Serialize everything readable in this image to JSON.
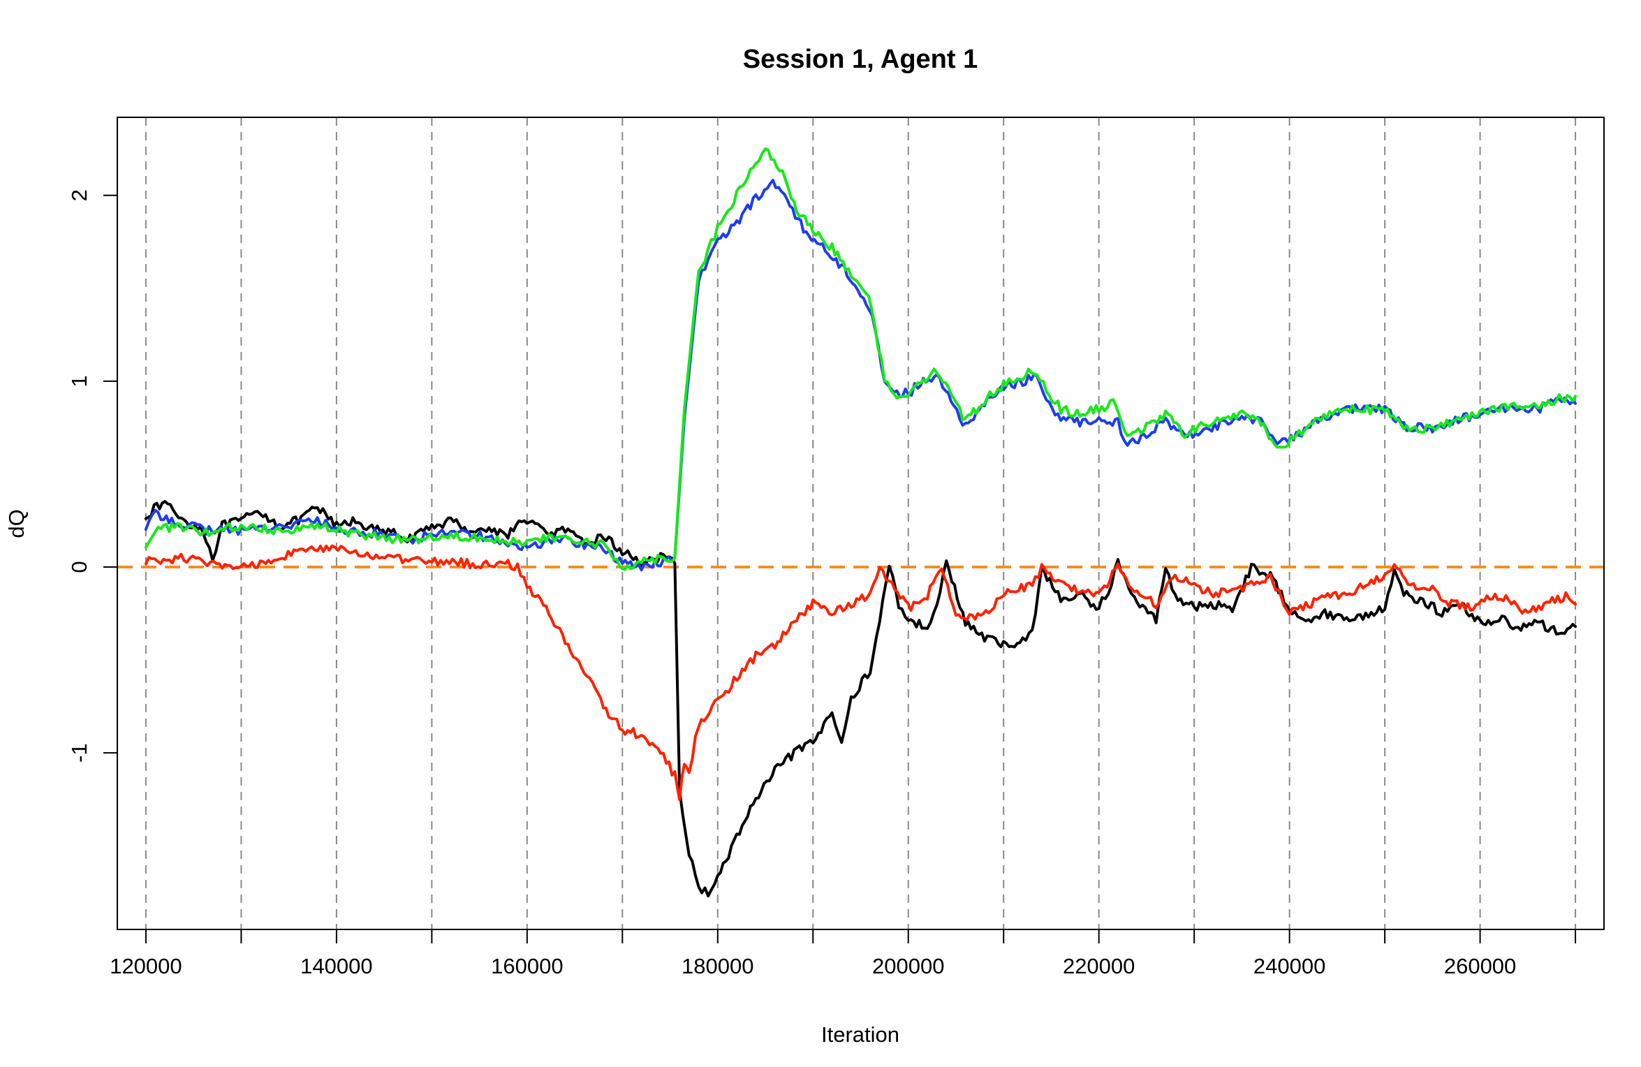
{
  "chart_data": {
    "type": "line",
    "title": "Session 1, Agent 1",
    "xlabel": "Iteration",
    "ylabel": "dQ",
    "xlim": [
      117000,
      273000
    ],
    "ylim": [
      -1.95,
      2.42
    ],
    "x_ticks": [
      120000,
      140000,
      160000,
      180000,
      200000,
      220000,
      240000,
      260000
    ],
    "x_tick_labels": [
      "120000",
      "140000",
      "160000",
      "180000",
      "200000",
      "220000",
      "240000",
      "260000"
    ],
    "y_ticks": [
      -1,
      0,
      1,
      2
    ],
    "y_tick_labels": [
      "-1",
      "0",
      "1",
      "2"
    ],
    "vertical_gridlines": [
      120000,
      130000,
      140000,
      150000,
      160000,
      170000,
      180000,
      190000,
      200000,
      210000,
      220000,
      230000,
      240000,
      250000,
      260000,
      270000
    ],
    "grid": "vertical dashed",
    "reference_line": {
      "y": 0,
      "color": "#ff8c1a",
      "style": "dashed"
    },
    "series": [
      {
        "color": "#000000",
        "x": [
          120000,
          122000,
          124000,
          126000,
          127000,
          128000,
          130000,
          132000,
          134000,
          136000,
          138000,
          140000,
          142000,
          144000,
          146000,
          148000,
          150000,
          152000,
          154000,
          156000,
          158000,
          160000,
          162000,
          164000,
          166000,
          168000,
          170000,
          172000,
          174000,
          175500,
          176000,
          177000,
          178000,
          179000,
          180000,
          182000,
          184000,
          186000,
          188000,
          190000,
          192000,
          193000,
          194000,
          196000,
          197000,
          198000,
          199000,
          200000,
          202000,
          203000,
          204000,
          206000,
          208000,
          210000,
          212000,
          213000,
          214000,
          216000,
          218000,
          220000,
          221000,
          222000,
          224000,
          226000,
          227000,
          228000,
          230000,
          232000,
          234000,
          236000,
          238000,
          240000,
          242000,
          244000,
          246000,
          248000,
          250000,
          251000,
          252000,
          254000,
          256000,
          258000,
          260000,
          262000,
          264000,
          266000,
          268000,
          270000
        ],
        "y": [
          0.28,
          0.35,
          0.25,
          0.2,
          0.05,
          0.22,
          0.25,
          0.3,
          0.22,
          0.25,
          0.32,
          0.22,
          0.25,
          0.2,
          0.18,
          0.15,
          0.22,
          0.25,
          0.2,
          0.2,
          0.18,
          0.26,
          0.18,
          0.2,
          0.12,
          0.17,
          0.08,
          0.03,
          0.05,
          0.02,
          -1.2,
          -1.55,
          -1.72,
          -1.75,
          -1.68,
          -1.45,
          -1.25,
          -1.1,
          -1.0,
          -0.95,
          -0.78,
          -0.92,
          -0.72,
          -0.55,
          -0.3,
          0.02,
          -0.2,
          -0.28,
          -0.33,
          -0.18,
          0.02,
          -0.3,
          -0.38,
          -0.42,
          -0.4,
          -0.35,
          0.0,
          -0.18,
          -0.15,
          -0.22,
          -0.12,
          0.02,
          -0.2,
          -0.28,
          0.0,
          -0.15,
          -0.22,
          -0.2,
          -0.22,
          0.0,
          -0.05,
          -0.22,
          -0.28,
          -0.25,
          -0.28,
          -0.26,
          -0.22,
          0.0,
          -0.15,
          -0.18,
          -0.25,
          -0.2,
          -0.3,
          -0.28,
          -0.32,
          -0.3,
          -0.35,
          -0.32
        ]
      },
      {
        "color": "#1f3cf0",
        "x": [
          120000,
          121000,
          123000,
          126000,
          130000,
          134000,
          138000,
          140000,
          144000,
          148000,
          152000,
          156000,
          158000,
          160000,
          162000,
          164000,
          166000,
          168000,
          170000,
          172000,
          174000,
          175500,
          176500,
          178000,
          179000,
          180000,
          182000,
          184000,
          185500,
          187000,
          189000,
          191000,
          193000,
          195000,
          196500,
          197500,
          198500,
          200000,
          201000,
          203000,
          204500,
          206000,
          208000,
          210000,
          212000,
          213500,
          214500,
          216000,
          218000,
          220000,
          222000,
          223000,
          225000,
          227000,
          229000,
          231000,
          233000,
          235000,
          237000,
          239000,
          241000,
          243000,
          246000,
          250000,
          252000,
          255000,
          258000,
          260000,
          262000,
          266000,
          268000,
          270000
        ],
        "y": [
          0.22,
          0.28,
          0.25,
          0.2,
          0.2,
          0.22,
          0.25,
          0.2,
          0.18,
          0.15,
          0.2,
          0.16,
          0.12,
          0.1,
          0.14,
          0.15,
          0.12,
          0.1,
          0.02,
          0.0,
          0.03,
          0.05,
          0.8,
          1.55,
          1.65,
          1.75,
          1.85,
          1.98,
          2.08,
          2.0,
          1.82,
          1.72,
          1.62,
          1.48,
          1.3,
          1.0,
          0.95,
          0.93,
          0.98,
          1.02,
          0.9,
          0.75,
          0.88,
          0.97,
          1.0,
          1.02,
          0.9,
          0.8,
          0.78,
          0.8,
          0.78,
          0.65,
          0.72,
          0.78,
          0.7,
          0.72,
          0.78,
          0.82,
          0.78,
          0.66,
          0.72,
          0.78,
          0.85,
          0.85,
          0.76,
          0.74,
          0.8,
          0.82,
          0.85,
          0.85,
          0.9,
          0.88
        ]
      },
      {
        "color": "#18e818",
        "x": [
          120000,
          121000,
          123000,
          126000,
          130000,
          134000,
          138000,
          140000,
          144000,
          148000,
          152000,
          156000,
          158000,
          160000,
          162000,
          164000,
          166000,
          168000,
          170000,
          172000,
          174000,
          175500,
          176500,
          178000,
          179000,
          180000,
          182000,
          184000,
          185000,
          186500,
          188000,
          190000,
          192000,
          194000,
          195500,
          196500,
          197500,
          198500,
          200000,
          201000,
          203000,
          204500,
          206000,
          208000,
          210000,
          212000,
          213500,
          214500,
          216000,
          218000,
          220000,
          221500,
          223000,
          225000,
          227000,
          229000,
          231000,
          233000,
          235000,
          237000,
          239000,
          241000,
          243000,
          246000,
          250000,
          252000,
          255000,
          258000,
          260000,
          262000,
          266000,
          268000,
          270000
        ],
        "y": [
          0.12,
          0.2,
          0.22,
          0.18,
          0.22,
          0.2,
          0.22,
          0.2,
          0.16,
          0.15,
          0.17,
          0.16,
          0.14,
          0.13,
          0.15,
          0.16,
          0.13,
          0.12,
          0.0,
          0.03,
          0.05,
          0.05,
          0.85,
          1.6,
          1.7,
          1.82,
          2.0,
          2.18,
          2.24,
          2.15,
          1.95,
          1.8,
          1.72,
          1.58,
          1.5,
          1.3,
          1.0,
          0.93,
          0.93,
          1.0,
          1.05,
          0.95,
          0.78,
          0.9,
          0.98,
          1.03,
          1.06,
          0.95,
          0.85,
          0.82,
          0.85,
          0.88,
          0.72,
          0.75,
          0.82,
          0.72,
          0.76,
          0.8,
          0.82,
          0.78,
          0.63,
          0.72,
          0.8,
          0.86,
          0.84,
          0.76,
          0.74,
          0.8,
          0.84,
          0.86,
          0.86,
          0.9,
          0.92
        ]
      },
      {
        "color": "#ff2200",
        "x": [
          120000,
          124000,
          128000,
          130000,
          132000,
          134000,
          138000,
          142000,
          146000,
          150000,
          154000,
          156000,
          158000,
          159000,
          160000,
          162000,
          164000,
          166000,
          168000,
          170000,
          172000,
          174000,
          175500,
          176000,
          176500,
          177000,
          178000,
          180000,
          182000,
          184000,
          186000,
          188000,
          190000,
          192000,
          194000,
          196000,
          197000,
          198000,
          200000,
          202000,
          203500,
          205000,
          207000,
          209000,
          211000,
          213000,
          214000,
          216000,
          218000,
          220000,
          222000,
          224000,
          226000,
          228000,
          230000,
          232000,
          234000,
          236000,
          238000,
          240000,
          242000,
          244000,
          246000,
          248000,
          250000,
          251000,
          253000,
          255000,
          257000,
          259000,
          261000,
          263000,
          265000,
          267000,
          269000,
          270000
        ],
        "y": [
          0.03,
          0.05,
          0.0,
          0.0,
          0.02,
          0.06,
          0.1,
          0.08,
          0.04,
          0.03,
          0.02,
          0.01,
          0.02,
          0.0,
          -0.1,
          -0.22,
          -0.4,
          -0.55,
          -0.75,
          -0.88,
          -0.9,
          -1.0,
          -1.12,
          -1.24,
          -1.05,
          -1.1,
          -0.85,
          -0.72,
          -0.6,
          -0.48,
          -0.42,
          -0.3,
          -0.2,
          -0.25,
          -0.2,
          -0.15,
          0.02,
          -0.08,
          -0.22,
          -0.15,
          0.0,
          -0.25,
          -0.28,
          -0.2,
          -0.12,
          -0.1,
          0.0,
          -0.1,
          -0.12,
          -0.15,
          0.0,
          -0.15,
          -0.2,
          -0.05,
          -0.1,
          -0.15,
          -0.12,
          -0.1,
          -0.05,
          -0.25,
          -0.2,
          -0.15,
          -0.15,
          -0.1,
          -0.05,
          0.0,
          -0.1,
          -0.12,
          -0.2,
          -0.22,
          -0.15,
          -0.18,
          -0.25,
          -0.2,
          -0.15,
          -0.2
        ]
      }
    ]
  }
}
